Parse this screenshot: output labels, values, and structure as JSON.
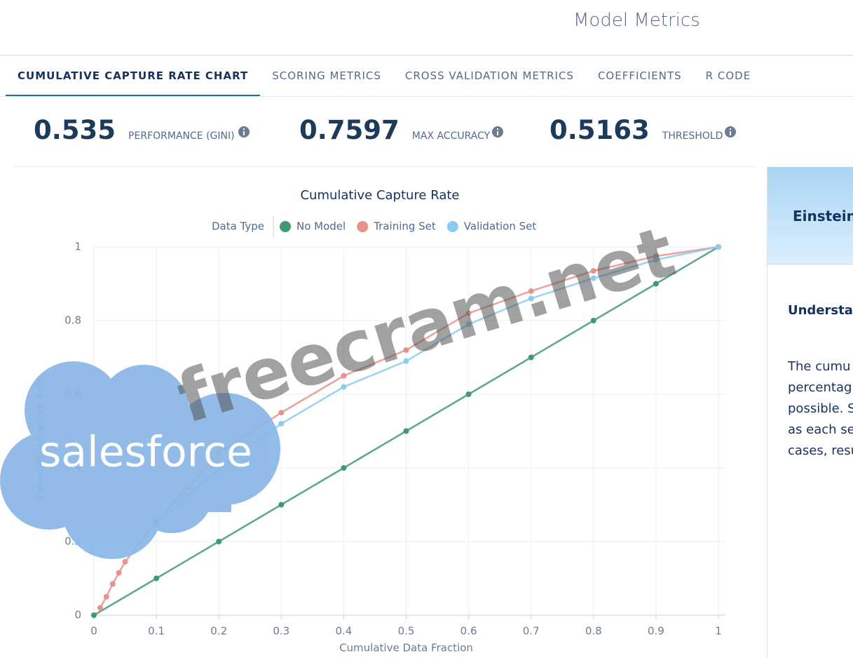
{
  "header": {
    "title": "Model Metrics"
  },
  "tabs": [
    "CUMULATIVE CAPTURE RATE CHART",
    "SCORING METRICS",
    "CROSS VALIDATION METRICS",
    "COEFFICIENTS",
    "R CODE"
  ],
  "metrics": [
    {
      "value": "0.535",
      "label": "PERFORMANCE (GINI)"
    },
    {
      "value": "0.7597",
      "label": "MAX ACCURACY"
    },
    {
      "value": "0.5163",
      "label": "THRESHOLD"
    }
  ],
  "chart_data": {
    "type": "line",
    "title": "Cumulative Capture Rate",
    "legend_title": "Data Type",
    "x_label": "Cumulative Data Fraction",
    "y_label": "Cumulative Capture Rate",
    "xlim": [
      0,
      1
    ],
    "ylim": [
      0,
      1
    ],
    "xticks": [
      0,
      0.1,
      0.2,
      0.3,
      0.4,
      0.5,
      0.6,
      0.7,
      0.8,
      0.9,
      1
    ],
    "yticks": [
      0,
      0.2,
      0.4,
      0.6,
      0.8,
      1
    ],
    "grid": true,
    "series": [
      {
        "name": "No Model",
        "color": "#3f9a72",
        "x": [
          0,
          0.1,
          0.2,
          0.3,
          0.4,
          0.5,
          0.6,
          0.7,
          0.8,
          0.9,
          1
        ],
        "values": [
          0,
          0.1,
          0.2,
          0.3,
          0.4,
          0.5,
          0.6,
          0.7,
          0.8,
          0.9,
          1
        ]
      },
      {
        "name": "Training Set",
        "color": "#e8928c",
        "x": [
          0.01,
          0.02,
          0.03,
          0.04,
          0.05,
          0.1,
          0.15,
          0.2,
          0.3,
          0.4,
          0.5,
          0.6,
          0.7,
          0.8,
          0.9,
          1
        ],
        "values": [
          0.02,
          0.05,
          0.085,
          0.115,
          0.145,
          0.255,
          0.345,
          0.44,
          0.55,
          0.65,
          0.72,
          0.82,
          0.88,
          0.935,
          0.975,
          1
        ]
      },
      {
        "name": "Validation Set",
        "color": "#8ccbf0",
        "x": [
          0.1,
          0.15,
          0.2,
          0.3,
          0.4,
          0.5,
          0.6,
          0.7,
          0.8,
          0.9,
          1
        ],
        "values": [
          0.245,
          0.325,
          0.395,
          0.52,
          0.62,
          0.69,
          0.79,
          0.86,
          0.915,
          0.965,
          1
        ]
      }
    ]
  },
  "side_panel": {
    "title": "Einstein",
    "heading": "Understan",
    "lines": [
      "The cumu",
      "percentag",
      "possible. S",
      "as each se",
      "cases, resu"
    ]
  },
  "watermark": "freecram.net",
  "logo": "salesforce"
}
